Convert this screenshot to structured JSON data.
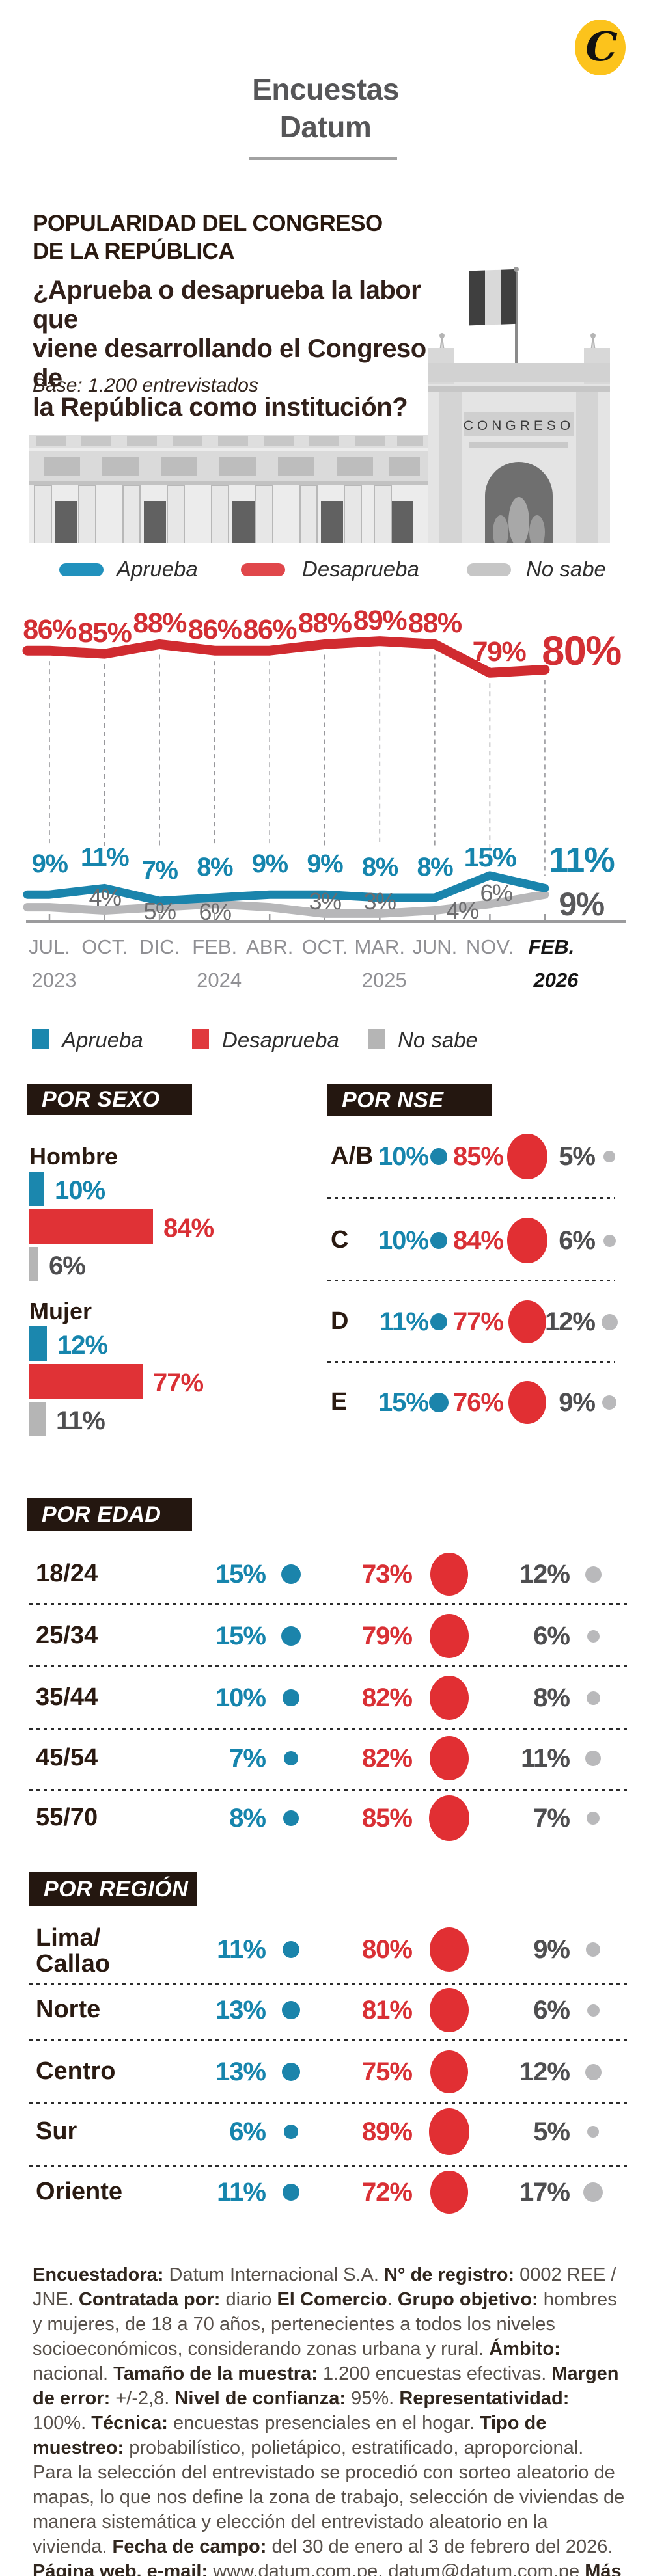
{
  "header": {
    "title_line1": "Encuestas",
    "title_line2": "Datum",
    "logo_letter": "C"
  },
  "intro": {
    "kicker_lines": [
      "POPULARIDAD DEL CONGRESO",
      "DE LA REPÚBLICA"
    ],
    "question_lines": [
      "¿Aprueba o desaprueba la labor que",
      "viene desarrollando el Congreso de",
      "la República como institución?"
    ],
    "base": "Base: 1.200 entrevistados",
    "photo_caption": "CONGRESO"
  },
  "legend": {
    "aprueba": "Aprueba",
    "desaprueba": "Desaprueba",
    "no_sabe": "No sabe"
  },
  "colors": {
    "aprueba": "#1685ad",
    "desaprueba": "#d93035",
    "no_sabe": "#b7b7b9",
    "accent_yellow": "#fcc31c"
  },
  "chart_data": {
    "type": "line",
    "title": "",
    "xlabel": "",
    "ylabel": "",
    "ylim": [
      0,
      100
    ],
    "grid": "vertical-dashed",
    "legend_position": "top",
    "x": [
      {
        "month": "JUL.",
        "year": "2023",
        "bold": false
      },
      {
        "month": "OCT.",
        "year": "",
        "bold": false
      },
      {
        "month": "DIC.",
        "year": "",
        "bold": false
      },
      {
        "month": "FEB.",
        "year": "2024",
        "bold": false
      },
      {
        "month": "ABR.",
        "year": "",
        "bold": false
      },
      {
        "month": "OCT.",
        "year": "",
        "bold": false
      },
      {
        "month": "MAR.",
        "year": "2025",
        "bold": false
      },
      {
        "month": "JUN.",
        "year": "",
        "bold": false
      },
      {
        "month": "NOV.",
        "year": "",
        "bold": false
      },
      {
        "month": "FEB.",
        "year": "2026",
        "bold": true
      }
    ],
    "series": [
      {
        "name": "Aprueba",
        "color": "#1685ad",
        "values": [
          9,
          11,
          7,
          8,
          9,
          9,
          8,
          8,
          15,
          11
        ]
      },
      {
        "name": "Desaprueba",
        "color": "#d02b30",
        "values": [
          86,
          85,
          88,
          86,
          86,
          88,
          89,
          88,
          79,
          80
        ]
      },
      {
        "name": "No sabe",
        "color": "#b7b7b9",
        "values": [
          5,
          4,
          5,
          6,
          5,
          3,
          3,
          4,
          6,
          9
        ],
        "labeled": [
          false,
          true,
          true,
          true,
          false,
          true,
          true,
          true,
          true,
          true
        ]
      }
    ]
  },
  "by_sex": {
    "header": "POR SEXO",
    "groups": [
      {
        "label": "Hombre",
        "aprueba": 10,
        "desaprueba": 84,
        "no_sabe": 6
      },
      {
        "label": "Mujer",
        "aprueba": 12,
        "desaprueba": 77,
        "no_sabe": 11
      }
    ]
  },
  "by_nse": {
    "header": "POR NSE",
    "rows": [
      {
        "label": "A/B",
        "aprueba": 10,
        "desaprueba": 85,
        "no_sabe": 5
      },
      {
        "label": "C",
        "aprueba": 10,
        "desaprueba": 84,
        "no_sabe": 6
      },
      {
        "label": "D",
        "aprueba": 11,
        "desaprueba": 77,
        "no_sabe": 12
      },
      {
        "label": "E",
        "aprueba": 15,
        "desaprueba": 76,
        "no_sabe": 9
      }
    ]
  },
  "by_age": {
    "header": "POR EDAD",
    "rows": [
      {
        "label": "18/24",
        "aprueba": 15,
        "desaprueba": 73,
        "no_sabe": 12
      },
      {
        "label": "25/34",
        "aprueba": 15,
        "desaprueba": 79,
        "no_sabe": 6
      },
      {
        "label": "35/44",
        "aprueba": 10,
        "desaprueba": 82,
        "no_sabe": 8
      },
      {
        "label": "45/54",
        "aprueba": 7,
        "desaprueba": 82,
        "no_sabe": 11
      },
      {
        "label": "55/70",
        "aprueba": 8,
        "desaprueba": 85,
        "no_sabe": 7
      }
    ]
  },
  "by_region": {
    "header": "POR REGIÓN",
    "rows": [
      {
        "label": "Lima/\nCallao",
        "aprueba": 11,
        "desaprueba": 80,
        "no_sabe": 9
      },
      {
        "label": "Norte",
        "aprueba": 13,
        "desaprueba": 81,
        "no_sabe": 6
      },
      {
        "label": "Centro",
        "aprueba": 13,
        "desaprueba": 75,
        "no_sabe": 12
      },
      {
        "label": "Sur",
        "aprueba": 6,
        "desaprueba": 89,
        "no_sabe": 5
      },
      {
        "label": "Oriente",
        "aprueba": 11,
        "desaprueba": 72,
        "no_sabe": 17
      }
    ]
  },
  "footer": {
    "segments": [
      {
        "b": true,
        "t": "Encuestadora: "
      },
      {
        "b": false,
        "t": "Datum Internacional S.A. "
      },
      {
        "b": true,
        "t": "N° de registro: "
      },
      {
        "b": false,
        "t": "0002 REE / JNE. "
      },
      {
        "b": true,
        "t": "Contratada por: "
      },
      {
        "b": false,
        "t": "diario "
      },
      {
        "b": true,
        "t": "El Comercio"
      },
      {
        "b": false,
        "t": ". "
      },
      {
        "b": true,
        "t": "Grupo objetivo: "
      },
      {
        "b": false,
        "t": "hombres y mujeres, de 18 a 70 años, pertenecientes a todos los niveles socioeconómicos, considerando zonas urbana y rural. "
      },
      {
        "b": true,
        "t": "Ámbito: "
      },
      {
        "b": false,
        "t": "nacional. "
      },
      {
        "b": true,
        "t": "Tamaño de la muestra: "
      },
      {
        "b": false,
        "t": "1.200 encuestas efectivas. "
      },
      {
        "b": true,
        "t": "Margen de error: "
      },
      {
        "b": false,
        "t": "+/-2,8. "
      },
      {
        "b": true,
        "t": "Nivel de confianza: "
      },
      {
        "b": false,
        "t": "95%. "
      },
      {
        "b": true,
        "t": "Representatividad: "
      },
      {
        "b": false,
        "t": "100%. "
      },
      {
        "b": true,
        "t": "Técnica: "
      },
      {
        "b": false,
        "t": "encuestas presenciales en el hogar. "
      },
      {
        "b": true,
        "t": "Tipo de muestreo: "
      },
      {
        "b": false,
        "t": "probabilístico, polietápico, estratificado, aproporcional. Para la selección del entrevistado se procedió con sorteo aleatorio de mapas, lo que nos define la zona de trabajo, selección de viviendas de manera sistemática y elección del entrevistado aleatorio en la vivienda. "
      },
      {
        "b": true,
        "t": "Fecha de campo: "
      },
      {
        "b": false,
        "t": "del 30 de enero al 3 de febrero del 2026. "
      },
      {
        "b": true,
        "t": "Página web, e-mail: "
      },
      {
        "b": false,
        "t": "www.datum.com.pe, datum@datum.com.pe "
      },
      {
        "b": true,
        "t": "Más información en elcomercio.pe."
      }
    ]
  }
}
